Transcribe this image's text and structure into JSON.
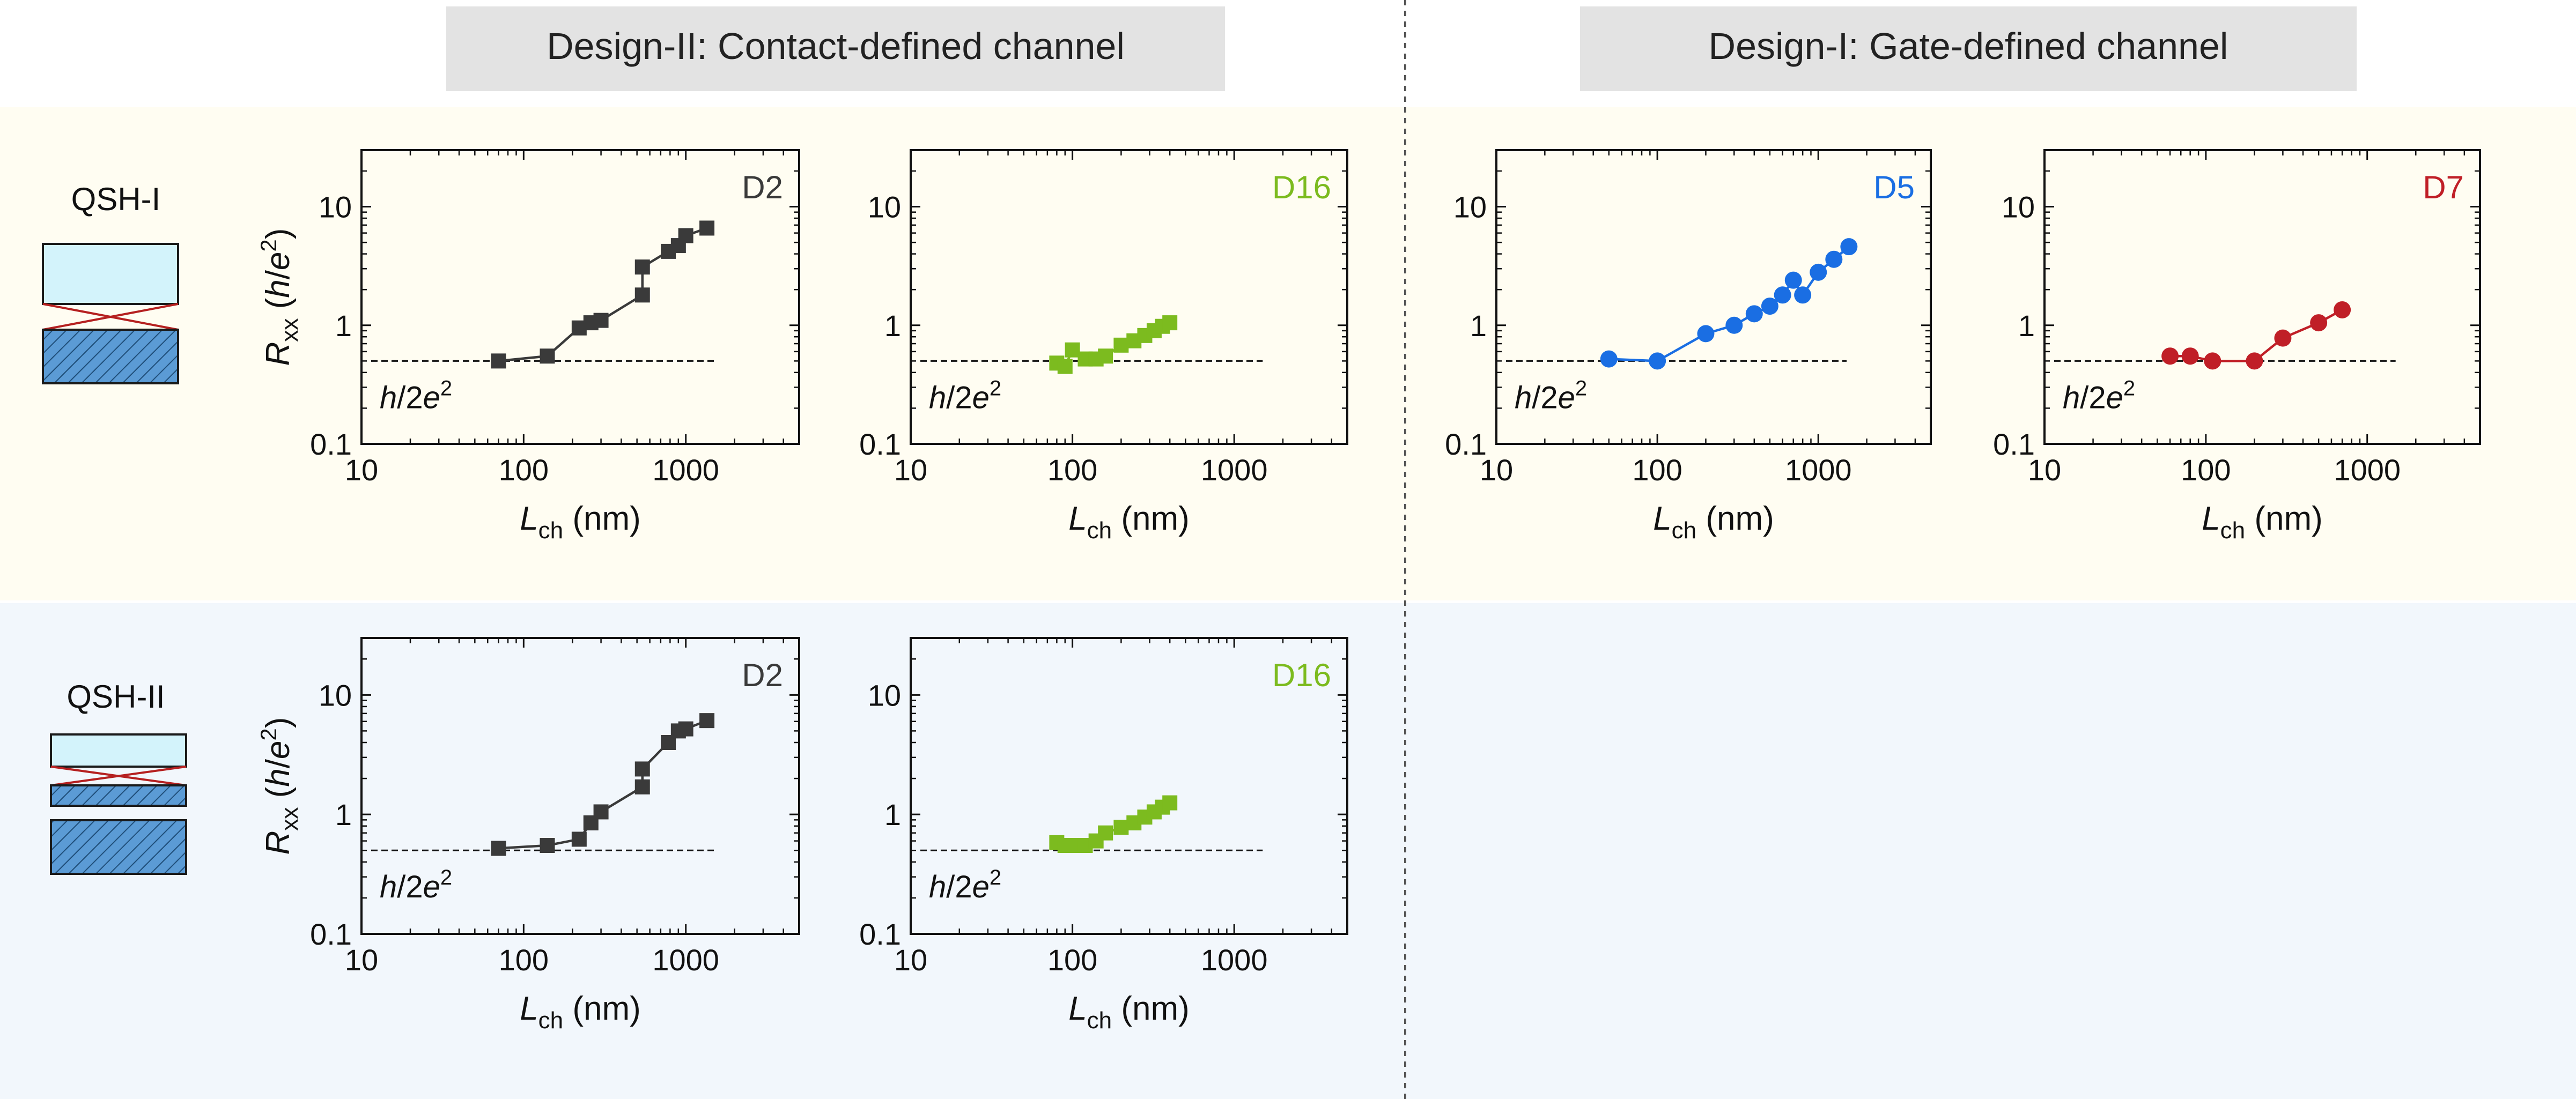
{
  "headers": {
    "design2": "Design-II:  Contact-defined channel",
    "design1": "Design-I:  Gate-defined channel"
  },
  "rows": {
    "row1_label": "QSH-I",
    "row2_label": "QSH-II"
  },
  "colors": {
    "row1_bg": "#fffdf2",
    "row2_bg": "#f2f7fc",
    "header_bg": "#e3e3e3",
    "D2": "#3a3a3a",
    "D16": "#7cbb1f",
    "D5": "#1a6ee3",
    "D7": "#c01f27",
    "schematic_fill": "#d3f3fb",
    "schematic_hatch": "#5b9bd5",
    "schematic_cross": "#b52020"
  },
  "axis_text": {
    "x_label_main": "L",
    "x_label_sub": "ch",
    "x_label_unit": " (nm)",
    "y_label_main": "R",
    "y_label_sub": "xx",
    "y_label_unit_open": " (",
    "y_label_unit_h": "h",
    "y_label_unit_slash": "/",
    "y_label_unit_e": "e",
    "y_label_unit_exp": "2",
    "y_label_unit_close": ")",
    "x_ticks": [
      "10",
      "100",
      "1000"
    ],
    "y_ticks": [
      "0.1",
      "1",
      "10"
    ]
  },
  "guide_text": {
    "h": "h",
    "mid": "/2",
    "e": "e",
    "exp": "2"
  },
  "chart_data": [
    {
      "type": "line",
      "id": "QSH-I-D2",
      "device": "D2",
      "row": "QSH-I",
      "design": "Design-II",
      "marker": "square",
      "color": "#3a3a3a",
      "x": [
        70,
        140,
        220,
        260,
        300,
        540,
        540,
        780,
        900,
        1000,
        1350
      ],
      "y": [
        0.5,
        0.55,
        0.95,
        1.05,
        1.1,
        1.8,
        3.1,
        4.2,
        4.7,
        5.7,
        6.6
      ],
      "xscale": "log",
      "yscale": "log",
      "xlim": [
        10,
        5000
      ],
      "ylim": [
        0.1,
        30
      ],
      "reference_line": 0.5,
      "reference_label": "h/2e^2",
      "xlabel": "L_ch (nm)",
      "ylabel": "R_xx (h/e^2)"
    },
    {
      "type": "line",
      "id": "QSH-I-D16",
      "device": "D16",
      "row": "QSH-I",
      "design": "Design-II",
      "marker": "square",
      "color": "#7cbb1f",
      "x": [
        80,
        90,
        100,
        120,
        140,
        160,
        200,
        240,
        280,
        320,
        360,
        400
      ],
      "y": [
        0.48,
        0.45,
        0.62,
        0.52,
        0.52,
        0.55,
        0.68,
        0.74,
        0.82,
        0.9,
        0.98,
        1.05
      ],
      "xscale": "log",
      "yscale": "log",
      "xlim": [
        10,
        5000
      ],
      "ylim": [
        0.1,
        30
      ],
      "reference_line": 0.5,
      "reference_label": "h/2e^2",
      "xlabel": "L_ch (nm)"
    },
    {
      "type": "line",
      "id": "QSH-I-D5",
      "device": "D5",
      "row": "QSH-I",
      "design": "Design-I",
      "marker": "circle",
      "color": "#1a6ee3",
      "x": [
        50,
        100,
        200,
        300,
        400,
        500,
        600,
        700,
        800,
        1000,
        1250,
        1550
      ],
      "y": [
        0.52,
        0.5,
        0.85,
        1.0,
        1.25,
        1.45,
        1.8,
        2.4,
        1.8,
        2.8,
        3.6,
        4.6
      ],
      "xscale": "log",
      "yscale": "log",
      "xlim": [
        10,
        5000
      ],
      "ylim": [
        0.1,
        30
      ],
      "reference_line": 0.5,
      "reference_label": "h/2e^2",
      "xlabel": "L_ch (nm)"
    },
    {
      "type": "line",
      "id": "QSH-I-D7",
      "device": "D7",
      "row": "QSH-I",
      "design": "Design-I",
      "marker": "circle",
      "color": "#c01f27",
      "x": [
        60,
        80,
        110,
        200,
        300,
        500,
        700
      ],
      "y": [
        0.55,
        0.55,
        0.5,
        0.5,
        0.78,
        1.05,
        1.35
      ],
      "xscale": "log",
      "yscale": "log",
      "xlim": [
        10,
        5000
      ],
      "ylim": [
        0.1,
        30
      ],
      "reference_line": 0.5,
      "reference_label": "h/2e^2",
      "xlabel": "L_ch (nm)"
    },
    {
      "type": "line",
      "id": "QSH-II-D2",
      "device": "D2",
      "row": "QSH-II",
      "design": "Design-II",
      "marker": "square",
      "color": "#3a3a3a",
      "x": [
        70,
        140,
        220,
        260,
        300,
        540,
        540,
        780,
        900,
        1000,
        1350
      ],
      "y": [
        0.52,
        0.55,
        0.62,
        0.85,
        1.05,
        1.7,
        2.4,
        4.0,
        5.0,
        5.2,
        6.1
      ],
      "xscale": "log",
      "yscale": "log",
      "xlim": [
        10,
        5000
      ],
      "ylim": [
        0.1,
        30
      ],
      "reference_line": 0.5,
      "reference_label": "h/2e^2",
      "xlabel": "L_ch (nm)",
      "ylabel": "R_xx (h/e^2)"
    },
    {
      "type": "line",
      "id": "QSH-II-D16",
      "device": "D16",
      "row": "QSH-II",
      "design": "Design-II",
      "marker": "square",
      "color": "#7cbb1f",
      "x": [
        80,
        90,
        100,
        120,
        140,
        160,
        200,
        240,
        280,
        320,
        360,
        400
      ],
      "y": [
        0.58,
        0.55,
        0.55,
        0.55,
        0.6,
        0.7,
        0.78,
        0.85,
        0.95,
        1.05,
        1.15,
        1.25
      ],
      "xscale": "log",
      "yscale": "log",
      "xlim": [
        10,
        5000
      ],
      "ylim": [
        0.1,
        30
      ],
      "reference_line": 0.5,
      "reference_label": "h/2e^2",
      "xlabel": "L_ch (nm)"
    }
  ]
}
